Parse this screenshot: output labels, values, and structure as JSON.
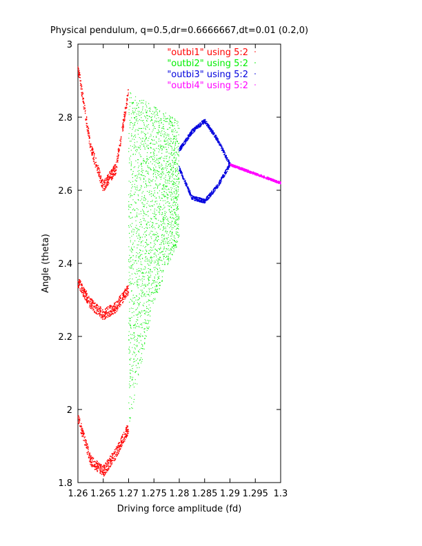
{
  "chart_data": {
    "type": "scatter",
    "title": "Physical pendulum, q=0.5,dr=0.6666667,dt=0.01 (0.2,0)",
    "xlabel": "Driving force amplitude (fd)",
    "ylabel": "Angle (theta)",
    "xlim": [
      1.26,
      1.3
    ],
    "ylim": [
      1.8,
      3.0
    ],
    "xticks": [
      "1.26",
      "1.265",
      "1.27",
      "1.275",
      "1.28",
      "1.285",
      "1.29",
      "1.295",
      "1.3"
    ],
    "yticks": [
      "1.8",
      "2",
      "2.2",
      "2.4",
      "2.6",
      "2.8",
      "3"
    ],
    "legend_position": "top-right",
    "grid": false,
    "series": [
      {
        "name": "\"outbi1\" using 5:2",
        "color": "#ff0000",
        "x_range": [
          1.26,
          1.27
        ],
        "branches": [
          {
            "x": [
              1.26,
              1.2625,
              1.265,
              1.2675,
              1.27
            ],
            "y": [
              2.94,
              2.72,
              2.61,
              2.66,
              2.87
            ]
          },
          {
            "x": [
              1.26,
              1.2625,
              1.265,
              1.2675,
              1.27
            ],
            "y": [
              2.35,
              2.29,
              2.26,
              2.28,
              2.33
            ]
          },
          {
            "x": [
              1.26,
              1.2625,
              1.265,
              1.2675,
              1.27
            ],
            "y": [
              1.98,
              1.86,
              1.83,
              1.88,
              1.95
            ]
          }
        ]
      },
      {
        "name": "\"outbi2\" using 5:2",
        "color": "#00ee00",
        "x_range": [
          1.27,
          1.28
        ],
        "upper": {
          "x": [
            1.27,
            1.28
          ],
          "y": [
            2.87,
            2.79
          ]
        },
        "lower": {
          "x": [
            1.27,
            1.2725,
            1.275,
            1.2775,
            1.28
          ],
          "y": [
            1.95,
            2.12,
            2.29,
            2.38,
            2.46
          ]
        }
      },
      {
        "name": "\"outbi3\" using 5:2",
        "color": "#0000dd",
        "x_range": [
          1.28,
          1.29
        ],
        "branches": [
          {
            "x": [
              1.28,
              1.2825,
              1.285,
              1.2875,
              1.29
            ],
            "y": [
              2.71,
              2.76,
              2.79,
              2.74,
              2.67
            ]
          },
          {
            "x": [
              1.28,
              1.2825,
              1.285,
              1.2875,
              1.29
            ],
            "y": [
              2.66,
              2.58,
              2.57,
              2.61,
              2.67
            ]
          }
        ]
      },
      {
        "name": "\"outbi4\" using 5:2",
        "color": "#ff00ff",
        "x_range": [
          1.29,
          1.3
        ],
        "x": [
          1.29,
          1.295,
          1.3
        ],
        "y": [
          2.67,
          2.645,
          2.62
        ]
      }
    ]
  }
}
